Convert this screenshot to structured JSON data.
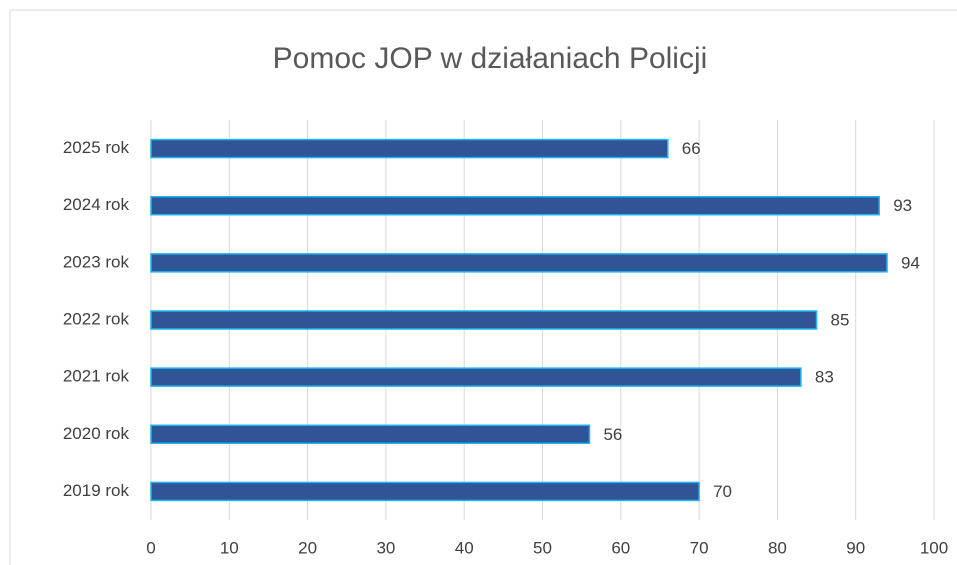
{
  "chart_data": {
    "type": "bar",
    "orientation": "horizontal",
    "title": "Pomoc JOP w działaniach Policji",
    "categories": [
      "2025 rok",
      "2024 rok",
      "2023 rok",
      "2022 rok",
      "2021 rok",
      "2020 rok",
      "2019 rok"
    ],
    "values": [
      66,
      93,
      94,
      85,
      83,
      56,
      70
    ],
    "color": "#2f5597",
    "edge_color": "#1fb4ef",
    "xlim": [
      0,
      100
    ],
    "xticks": [
      0,
      10,
      20,
      30,
      40,
      50,
      60,
      70,
      80,
      90,
      100
    ],
    "grid": true
  }
}
